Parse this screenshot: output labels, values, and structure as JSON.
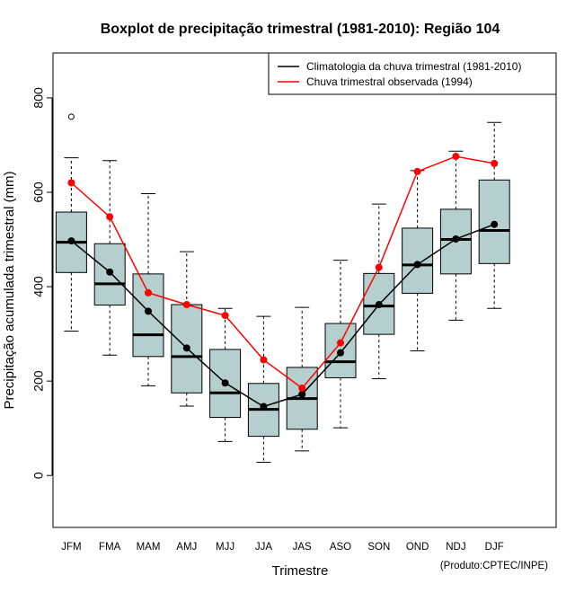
{
  "chart_data": {
    "type": "boxplot",
    "title": "Boxplot de precipitação trimestral (1981-2010): Região 104",
    "xlabel": "Trimestre",
    "ylabel": "Precipitação acumulada trimestral (mm)",
    "ylim": [
      -110,
      895
    ],
    "yticks": [
      0,
      200,
      400,
      600,
      800
    ],
    "categories": [
      "JFM",
      "FMA",
      "MAM",
      "AMJ",
      "MJJ",
      "JJA",
      "JAS",
      "ASO",
      "SON",
      "OND",
      "NDJ",
      "DJF"
    ],
    "boxes": [
      {
        "min": 306,
        "q1": 430,
        "median": 494,
        "q3": 558,
        "max": 673,
        "outliers": [
          760
        ]
      },
      {
        "min": 255,
        "q1": 361,
        "median": 406,
        "q3": 491,
        "max": 667,
        "outliers": []
      },
      {
        "min": 190,
        "q1": 252,
        "median": 298,
        "q3": 427,
        "max": 597,
        "outliers": []
      },
      {
        "min": 147,
        "q1": 175,
        "median": 252,
        "q3": 362,
        "max": 474,
        "outliers": []
      },
      {
        "min": 72,
        "q1": 123,
        "median": 175,
        "q3": 267,
        "max": 354,
        "outliers": []
      },
      {
        "min": 28,
        "q1": 83,
        "median": 140,
        "q3": 195,
        "max": 337,
        "outliers": []
      },
      {
        "min": 52,
        "q1": 98,
        "median": 163,
        "q3": 229,
        "max": 356,
        "outliers": []
      },
      {
        "min": 101,
        "q1": 207,
        "median": 241,
        "q3": 322,
        "max": 456,
        "outliers": []
      },
      {
        "min": 205,
        "q1": 299,
        "median": 359,
        "q3": 428,
        "max": 575,
        "outliers": []
      },
      {
        "min": 264,
        "q1": 386,
        "median": 446,
        "q3": 524,
        "max": 646,
        "outliers": []
      },
      {
        "min": 329,
        "q1": 427,
        "median": 500,
        "q3": 564,
        "max": 687,
        "outliers": []
      },
      {
        "min": 354,
        "q1": 449,
        "median": 519,
        "q3": 626,
        "max": 748,
        "outliers": []
      }
    ],
    "series": [
      {
        "name": "Climatologia da chuva trimestral (1981-2010)",
        "color": "#000000",
        "values": [
          497,
          431,
          348,
          270,
          196,
          146,
          172,
          260,
          362,
          447,
          501,
          532
        ]
      },
      {
        "name": "Chuva trimestral observada (1994)",
        "color": "#ff0000",
        "values": [
          620,
          548,
          387,
          362,
          339,
          245,
          185,
          281,
          441,
          644,
          676,
          661
        ]
      }
    ],
    "legend_position": "top-right",
    "box_fill": "#b5cece",
    "credit": "(Produto:CPTEC/INPE)"
  }
}
